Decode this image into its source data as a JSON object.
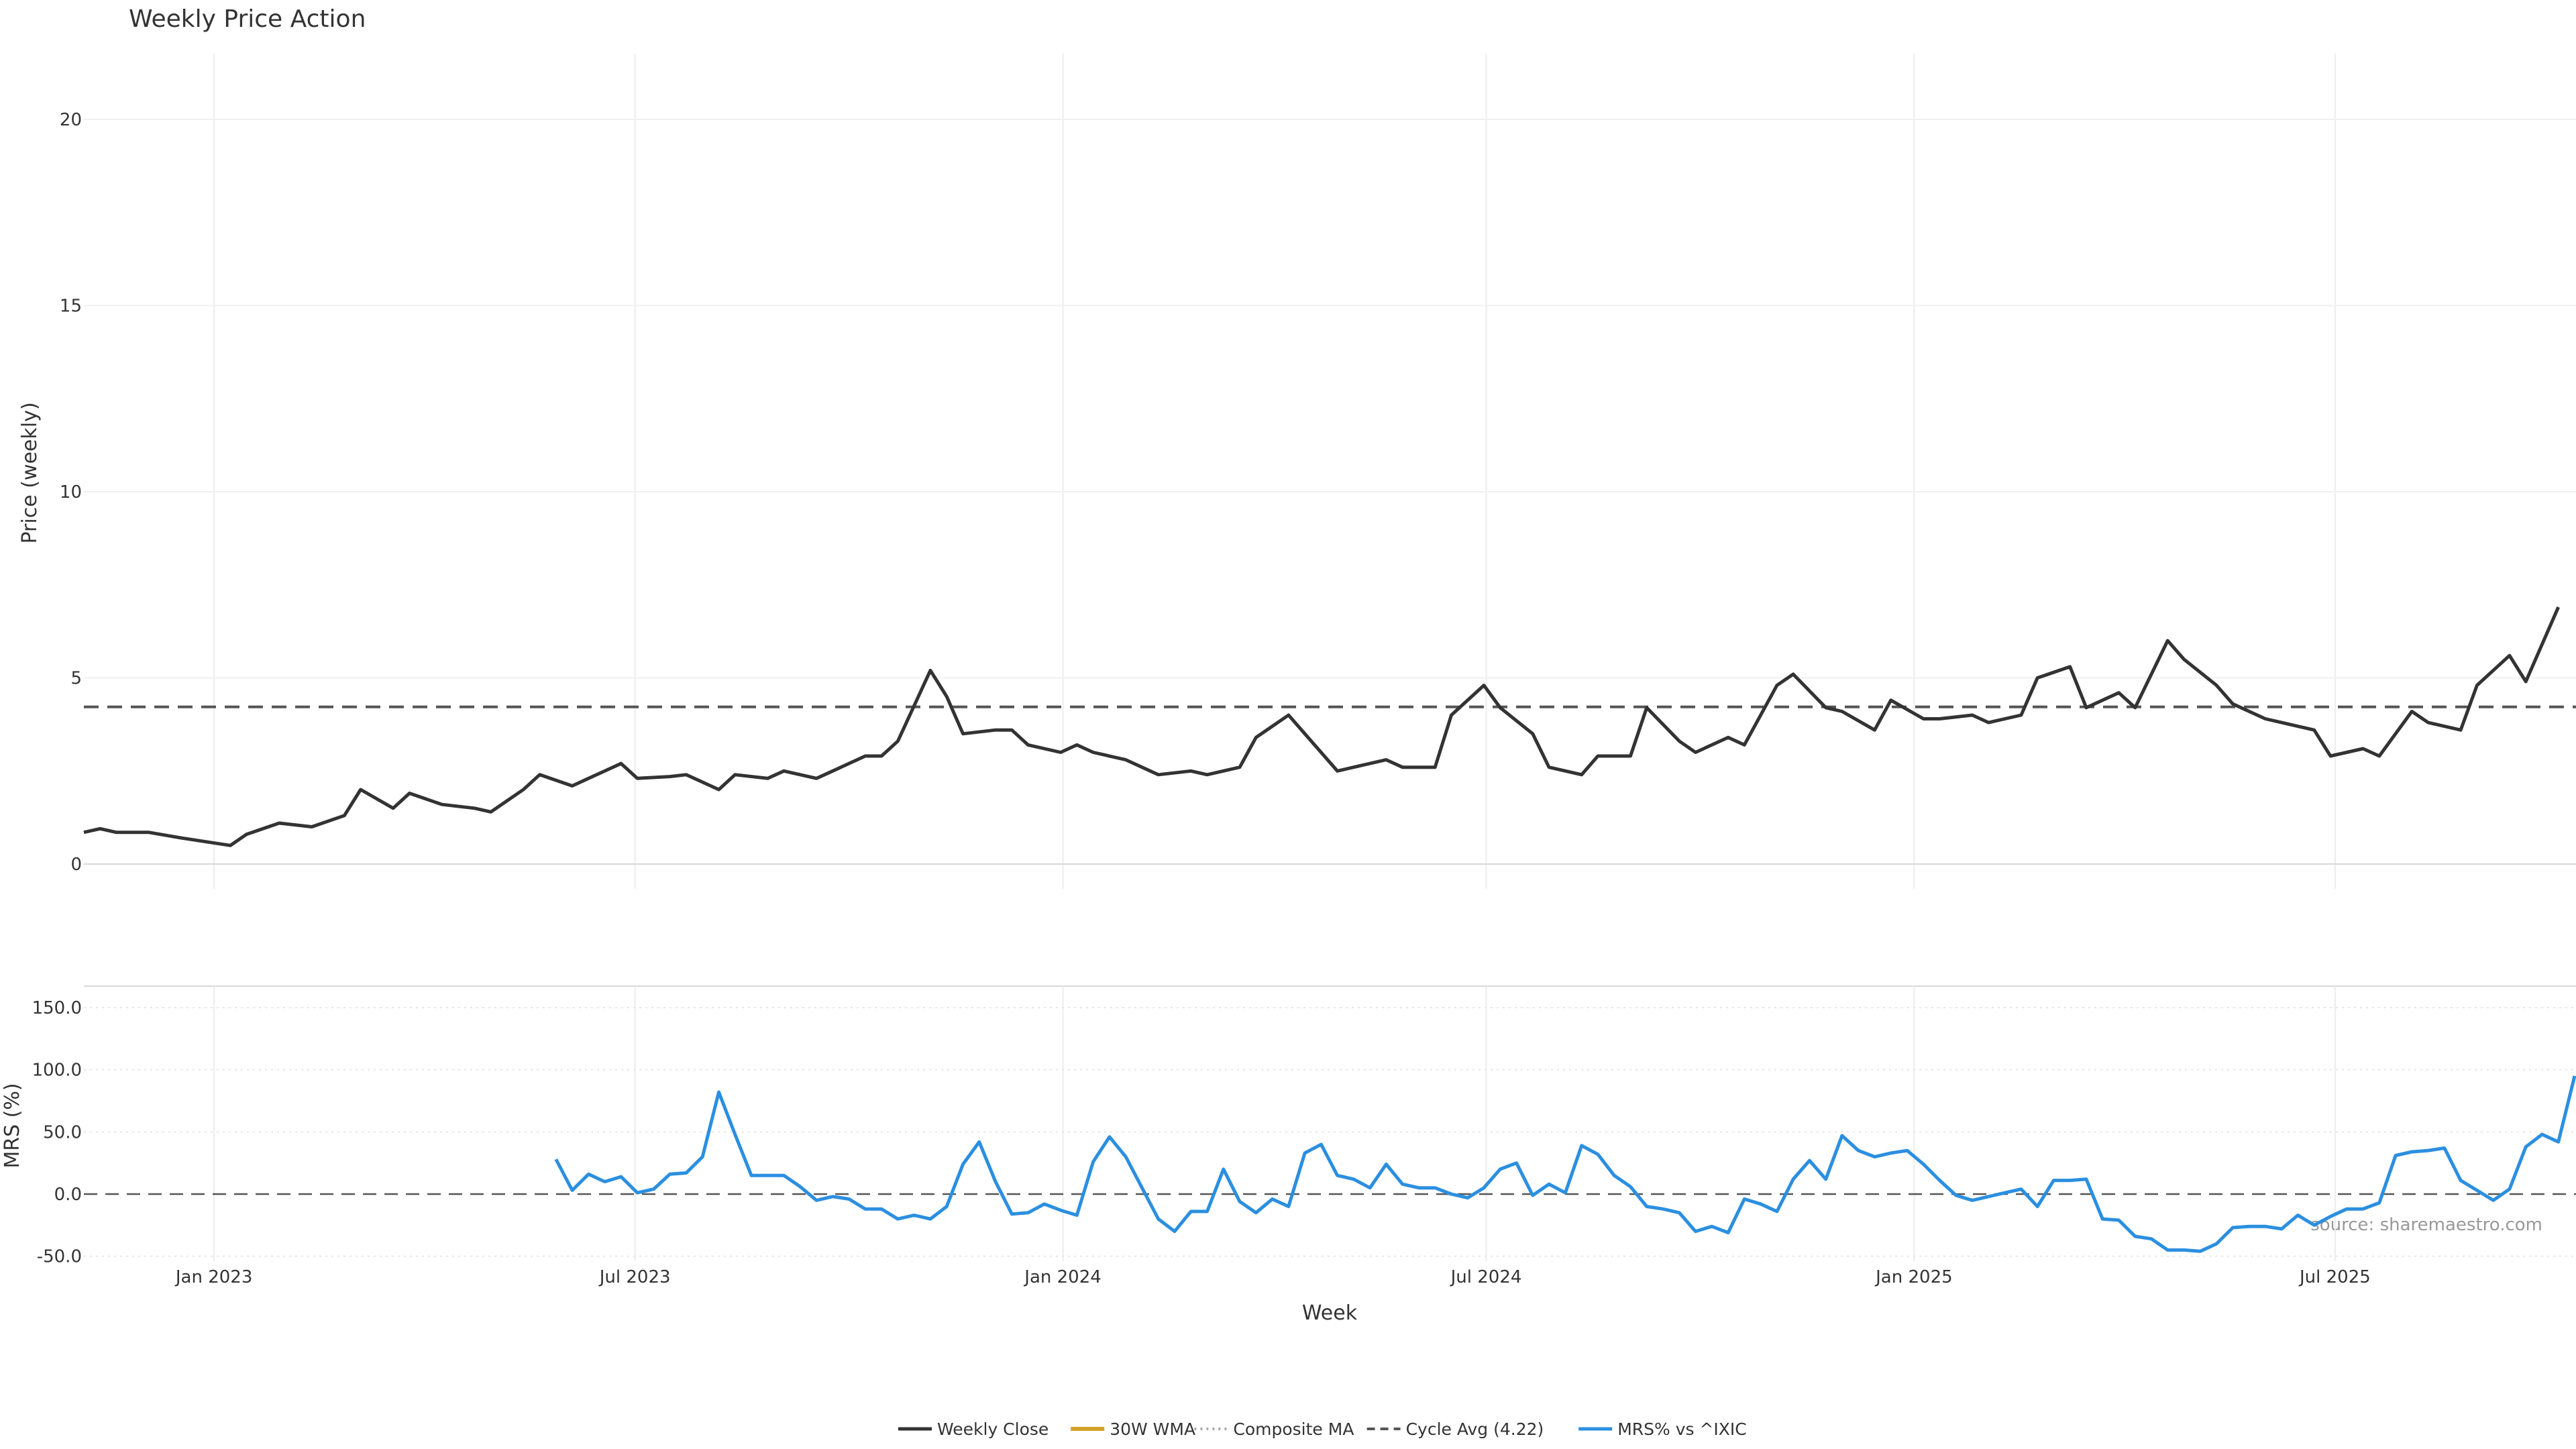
{
  "chart_data": {
    "type": "line",
    "title": "Weekly Price Action",
    "xlabel": "Week",
    "source": "source: sharemaestro.com",
    "x_ticks": [
      "Jan 2023",
      "Jul 2023",
      "Jan 2024",
      "Jul 2024",
      "Jan 2025",
      "Jul 2025"
    ],
    "x_range": [
      "2022-11-06",
      "2025-10-12"
    ],
    "grid": true,
    "legend_position": "bottom-center",
    "colors": {
      "close": "#333333",
      "wma": "#d4a128",
      "composite": "#aaaaaa",
      "cycle": "#555555",
      "mrs": "#2b8fe0",
      "up_marker": "#22a022",
      "down_marker": "#cc1111"
    },
    "price_panel": {
      "ylabel": "Price (weekly)",
      "ylim": [
        -0.5,
        22
      ],
      "yticks": [
        "0",
        "5",
        "10",
        "15",
        "20"
      ],
      "cycle_avg": 4.22,
      "series": [
        {
          "name": "Weekly Close",
          "style": "solid",
          "points": [
            [
              "2022-11-06",
              0.85
            ],
            [
              "2022-11-13",
              0.95
            ],
            [
              "2022-11-20",
              0.85
            ],
            [
              "2022-12-04",
              0.85
            ],
            [
              "2022-12-18",
              0.7
            ],
            [
              "2023-01-08",
              0.5
            ],
            [
              "2023-01-15",
              0.8
            ],
            [
              "2023-01-29",
              1.1
            ],
            [
              "2023-02-12",
              1.0
            ],
            [
              "2023-02-26",
              1.3
            ],
            [
              "2023-03-05",
              2.0
            ],
            [
              "2023-03-19",
              1.5
            ],
            [
              "2023-03-26",
              1.9
            ],
            [
              "2023-04-09",
              1.6
            ],
            [
              "2023-04-23",
              1.5
            ],
            [
              "2023-04-30",
              1.4
            ],
            [
              "2023-05-14",
              2.0
            ],
            [
              "2023-05-21",
              2.4
            ],
            [
              "2023-06-04",
              2.1
            ],
            [
              "2023-06-11",
              2.3
            ],
            [
              "2023-06-25",
              2.7
            ],
            [
              "2023-07-02",
              2.3
            ],
            [
              "2023-07-16",
              2.35
            ],
            [
              "2023-07-23",
              2.4
            ],
            [
              "2023-08-06",
              2.0
            ],
            [
              "2023-08-13",
              2.4
            ],
            [
              "2023-08-27",
              2.3
            ],
            [
              "2023-09-03",
              2.5
            ],
            [
              "2023-09-17",
              2.3
            ],
            [
              "2023-09-24",
              2.5
            ],
            [
              "2023-10-08",
              2.9
            ],
            [
              "2023-10-15",
              2.9
            ],
            [
              "2023-10-22",
              3.3
            ],
            [
              "2023-11-05",
              5.2
            ],
            [
              "2023-11-12",
              4.5
            ],
            [
              "2023-11-19",
              3.5
            ],
            [
              "2023-12-03",
              3.6
            ],
            [
              "2023-12-10",
              3.6
            ],
            [
              "2023-12-17",
              3.2
            ],
            [
              "2023-12-31",
              3.0
            ],
            [
              "2024-01-07",
              3.2
            ],
            [
              "2024-01-14",
              3.0
            ],
            [
              "2024-01-28",
              2.8
            ],
            [
              "2024-02-04",
              2.6
            ],
            [
              "2024-02-11",
              2.4
            ],
            [
              "2024-02-25",
              2.5
            ],
            [
              "2024-03-03",
              2.4
            ],
            [
              "2024-03-17",
              2.6
            ],
            [
              "2024-03-24",
              3.4
            ],
            [
              "2024-04-07",
              4.0
            ],
            [
              "2024-04-14",
              3.5
            ],
            [
              "2024-04-28",
              2.5
            ],
            [
              "2024-05-05",
              2.6
            ],
            [
              "2024-05-19",
              2.8
            ],
            [
              "2024-05-26",
              2.6
            ],
            [
              "2024-06-09",
              2.6
            ],
            [
              "2024-06-16",
              4.0
            ],
            [
              "2024-06-30",
              4.8
            ],
            [
              "2024-07-07",
              4.2
            ],
            [
              "2024-07-21",
              3.5
            ],
            [
              "2024-07-28",
              2.6
            ],
            [
              "2024-08-11",
              2.4
            ],
            [
              "2024-08-18",
              2.9
            ],
            [
              "2024-09-01",
              2.9
            ],
            [
              "2024-09-08",
              4.2
            ],
            [
              "2024-09-22",
              3.3
            ],
            [
              "2024-09-29",
              3.0
            ],
            [
              "2024-10-13",
              3.4
            ],
            [
              "2024-10-20",
              3.2
            ],
            [
              "2024-11-03",
              4.8
            ],
            [
              "2024-11-10",
              5.1
            ],
            [
              "2024-11-24",
              4.2
            ],
            [
              "2024-12-01",
              4.1
            ],
            [
              "2024-12-15",
              3.6
            ],
            [
              "2024-12-22",
              4.4
            ],
            [
              "2025-01-05",
              3.9
            ],
            [
              "2025-01-12",
              3.9
            ],
            [
              "2025-01-26",
              4.0
            ],
            [
              "2025-02-02",
              3.8
            ],
            [
              "2025-02-16",
              4.0
            ],
            [
              "2025-02-23",
              5.0
            ],
            [
              "2025-03-09",
              5.3
            ],
            [
              "2025-03-16",
              4.2
            ],
            [
              "2025-03-30",
              4.6
            ],
            [
              "2025-04-06",
              4.2
            ],
            [
              "2025-04-20",
              6.0
            ],
            [
              "2025-04-27",
              5.5
            ],
            [
              "2025-05-11",
              4.8
            ],
            [
              "2025-05-18",
              4.3
            ],
            [
              "2025-06-01",
              3.9
            ],
            [
              "2025-06-08",
              3.8
            ],
            [
              "2025-06-22",
              3.6
            ],
            [
              "2025-06-29",
              2.9
            ],
            [
              "2025-07-13",
              3.1
            ],
            [
              "2025-07-20",
              2.9
            ],
            [
              "2025-08-03",
              4.1
            ],
            [
              "2025-08-10",
              3.8
            ],
            [
              "2025-08-24",
              3.6
            ],
            [
              "2025-08-31",
              4.8
            ],
            [
              "2025-09-14",
              5.6
            ],
            [
              "2025-09-21",
              4.9
            ],
            [
              "2025-10-05",
              6.9
            ]
          ]
        }
      ]
    },
    "mrs_panel": {
      "ylabel": "MRS (%)",
      "ylim": [
        -55,
        170
      ],
      "yticks": [
        "-50.0",
        "0.0",
        "50.0",
        "100.0",
        "150.0"
      ],
      "series": [
        {
          "name": "MRS% vs ^IXIC",
          "style": "solid",
          "points": [
            [
              "2023-05-28",
              28
            ],
            [
              "2023-06-04",
              3
            ],
            [
              "2023-06-11",
              16
            ],
            [
              "2023-06-18",
              10
            ],
            [
              "2023-06-25",
              14
            ],
            [
              "2023-07-02",
              1
            ],
            [
              "2023-07-09",
              4
            ],
            [
              "2023-07-16",
              16
            ],
            [
              "2023-07-23",
              17
            ],
            [
              "2023-07-30",
              30
            ],
            [
              "2023-08-06",
              82
            ],
            [
              "2023-08-13",
              48
            ],
            [
              "2023-08-20",
              15
            ],
            [
              "2023-08-27",
              15
            ],
            [
              "2023-09-03",
              15
            ],
            [
              "2023-09-10",
              6
            ],
            [
              "2023-09-17",
              -5
            ],
            [
              "2023-09-24",
              -2
            ],
            [
              "2023-10-01",
              -4
            ],
            [
              "2023-10-08",
              -12
            ],
            [
              "2023-10-15",
              -12
            ],
            [
              "2023-10-22",
              -20
            ],
            [
              "2023-10-29",
              -17
            ],
            [
              "2023-11-05",
              -20
            ],
            [
              "2023-11-12",
              -10
            ],
            [
              "2023-11-19",
              24
            ],
            [
              "2023-11-26",
              42
            ],
            [
              "2023-12-03",
              10
            ],
            [
              "2023-12-10",
              -16
            ],
            [
              "2023-12-17",
              -15
            ],
            [
              "2023-12-24",
              -8
            ],
            [
              "2023-12-31",
              -13
            ],
            [
              "2024-01-07",
              -17
            ],
            [
              "2024-01-14",
              26
            ],
            [
              "2024-01-21",
              46
            ],
            [
              "2024-01-28",
              30
            ],
            [
              "2024-02-04",
              5
            ],
            [
              "2024-02-11",
              -20
            ],
            [
              "2024-02-18",
              -30
            ],
            [
              "2024-02-25",
              -14
            ],
            [
              "2024-03-03",
              -14
            ],
            [
              "2024-03-10",
              20
            ],
            [
              "2024-03-17",
              -6
            ],
            [
              "2024-03-24",
              -15
            ],
            [
              "2024-03-31",
              -4
            ],
            [
              "2024-04-07",
              -10
            ],
            [
              "2024-04-14",
              33
            ],
            [
              "2024-04-21",
              40
            ],
            [
              "2024-04-28",
              15
            ],
            [
              "2024-05-05",
              12
            ],
            [
              "2024-05-12",
              5
            ],
            [
              "2024-05-19",
              24
            ],
            [
              "2024-05-26",
              8
            ],
            [
              "2024-06-02",
              5
            ],
            [
              "2024-06-09",
              5
            ],
            [
              "2024-06-16",
              0
            ],
            [
              "2024-06-23",
              -3
            ],
            [
              "2024-06-30",
              5
            ],
            [
              "2024-07-07",
              20
            ],
            [
              "2024-07-14",
              25
            ],
            [
              "2024-07-21",
              -1
            ],
            [
              "2024-07-28",
              8
            ],
            [
              "2024-08-04",
              1
            ],
            [
              "2024-08-11",
              39
            ],
            [
              "2024-08-18",
              32
            ],
            [
              "2024-08-25",
              15
            ],
            [
              "2024-09-01",
              6
            ],
            [
              "2024-09-08",
              -10
            ],
            [
              "2024-09-15",
              -12
            ],
            [
              "2024-09-22",
              -15
            ],
            [
              "2024-09-29",
              -30
            ],
            [
              "2024-10-06",
              -26
            ],
            [
              "2024-10-13",
              -31
            ],
            [
              "2024-10-20",
              -4
            ],
            [
              "2024-10-27",
              -8
            ],
            [
              "2024-11-03",
              -14
            ],
            [
              "2024-11-10",
              12
            ],
            [
              "2024-11-17",
              27
            ],
            [
              "2024-11-24",
              12
            ],
            [
              "2024-12-01",
              47
            ],
            [
              "2024-12-08",
              35
            ],
            [
              "2024-12-15",
              30
            ],
            [
              "2024-12-22",
              33
            ],
            [
              "2024-12-29",
              35
            ],
            [
              "2025-01-05",
              24
            ],
            [
              "2025-01-12",
              11
            ],
            [
              "2025-01-19",
              -1
            ],
            [
              "2025-01-26",
              -5
            ],
            [
              "2025-02-02",
              -2
            ],
            [
              "2025-02-09",
              1
            ],
            [
              "2025-02-16",
              4
            ],
            [
              "2025-02-23",
              -10
            ],
            [
              "2025-03-02",
              11
            ],
            [
              "2025-03-09",
              11
            ],
            [
              "2025-03-16",
              12
            ],
            [
              "2025-03-23",
              -20
            ],
            [
              "2025-03-30",
              -21
            ],
            [
              "2025-04-06",
              -34
            ],
            [
              "2025-04-13",
              -36
            ],
            [
              "2025-04-20",
              -45
            ],
            [
              "2025-04-27",
              -45
            ],
            [
              "2025-05-04",
              -46
            ],
            [
              "2025-05-11",
              -40
            ],
            [
              "2025-05-18",
              -27
            ],
            [
              "2025-05-25",
              -26
            ],
            [
              "2025-06-01",
              -26
            ],
            [
              "2025-06-08",
              -28
            ],
            [
              "2025-06-15",
              -17
            ],
            [
              "2025-06-22",
              -25
            ],
            [
              "2025-06-29",
              -18
            ],
            [
              "2025-07-06",
              -12
            ],
            [
              "2025-07-13",
              -12
            ],
            [
              "2025-07-20",
              -7
            ],
            [
              "2025-07-27",
              31
            ],
            [
              "2025-08-03",
              34
            ],
            [
              "2025-08-10",
              35
            ],
            [
              "2025-08-17",
              37
            ],
            [
              "2025-08-24",
              11
            ],
            [
              "2025-08-31",
              3
            ],
            [
              "2025-09-07",
              -5
            ],
            [
              "2025-09-14",
              4
            ],
            [
              "2025-09-21",
              38
            ],
            [
              "2025-09-28",
              48
            ],
            [
              "2025-10-05",
              42
            ],
            [
              "2025-10-12",
              95
            ]
          ]
        }
      ]
    },
    "legend": [
      {
        "label": "Weekly Close",
        "style": "solid",
        "color_key": "close"
      },
      {
        "label": "30W WMA",
        "style": "thick",
        "color_key": "wma"
      },
      {
        "label": "Composite MA",
        "style": "dotted",
        "color_key": "composite"
      },
      {
        "label": "Cycle Avg (4.22)",
        "style": "dashed",
        "color_key": "cycle"
      },
      {
        "label": "MRS% vs ^IXIC",
        "style": "solid",
        "color_key": "mrs"
      }
    ]
  }
}
